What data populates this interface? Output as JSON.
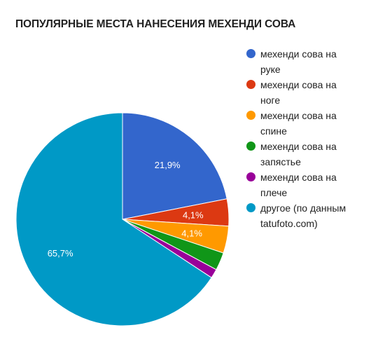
{
  "chart_data": {
    "type": "pie",
    "title": "ПОПУЛЯРНЫЕ МЕСТА НАНЕСЕНИЯ МЕХЕНДИ СОВА",
    "start_angle_deg": 0,
    "direction": "clockwise",
    "slices": [
      {
        "label_lines": [
          "мехенди сова на",
          "руке"
        ],
        "value": 21.9,
        "value_label": "21,9%",
        "color": "#3366cc"
      },
      {
        "label_lines": [
          "мехенди сова на",
          "ноге"
        ],
        "value": 4.1,
        "value_label": "4,1%",
        "color": "#dc3912"
      },
      {
        "label_lines": [
          "мехенди сова на",
          "спине"
        ],
        "value": 4.1,
        "value_label": "4,1%",
        "color": "#ff9900"
      },
      {
        "label_lines": [
          "мехенди сова на",
          "запястье"
        ],
        "value": 2.7,
        "value_label": "",
        "color": "#109618"
      },
      {
        "label_lines": [
          "мехенди сова на",
          "плече"
        ],
        "value": 1.4,
        "value_label": "",
        "color": "#990099"
      },
      {
        "label_lines": [
          "другое (по данным",
          "tatufoto.com)"
        ],
        "value": 65.7,
        "value_label": "65,7%",
        "color": "#0099c6"
      }
    ],
    "legend_position": "right"
  }
}
